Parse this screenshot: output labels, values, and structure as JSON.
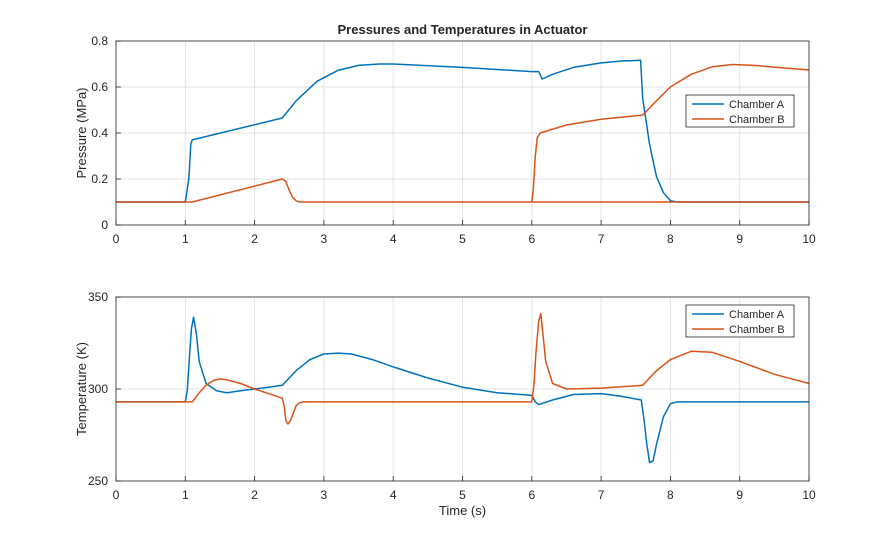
{
  "chart_data": [
    {
      "type": "line",
      "title": "Pressures and Temperatures in Actuator",
      "xlabel": "",
      "ylabel": "Pressure (MPa)",
      "xlim": [
        0,
        10
      ],
      "ylim": [
        0,
        0.8
      ],
      "xticks": [
        0,
        1,
        2,
        3,
        4,
        5,
        6,
        7,
        8,
        9,
        10
      ],
      "xtick_labels": [
        "0",
        "1",
        "2",
        "3",
        "4",
        "5",
        "6",
        "7",
        "8",
        "9",
        "10"
      ],
      "yticks": [
        0,
        0.2,
        0.4,
        0.6,
        0.8
      ],
      "ytick_labels": [
        "0",
        "0.2",
        "0.4",
        "0.6",
        "0.8"
      ],
      "grid": true,
      "legend": "right",
      "series": [
        {
          "name": "Chamber A",
          "color": "#0072BD",
          "x": [
            0,
            1.0,
            1.05,
            1.08,
            1.1,
            2.4,
            2.6,
            2.9,
            3.2,
            3.5,
            3.8,
            4.0,
            5.0,
            6.0,
            6.1,
            6.15,
            6.3,
            6.6,
            7.0,
            7.3,
            7.57,
            7.6,
            7.7,
            7.8,
            7.9,
            8.0,
            8.1,
            10
          ],
          "y": [
            0.1,
            0.1,
            0.2,
            0.35,
            0.37,
            0.465,
            0.54,
            0.625,
            0.672,
            0.694,
            0.7,
            0.7,
            0.685,
            0.667,
            0.667,
            0.635,
            0.655,
            0.685,
            0.705,
            0.713,
            0.716,
            0.55,
            0.35,
            0.21,
            0.14,
            0.105,
            0.1,
            0.1
          ]
        },
        {
          "name": "Chamber B",
          "color": "#D95319",
          "x": [
            0,
            1.1,
            2.4,
            2.45,
            2.5,
            2.55,
            2.6,
            2.65,
            2.7,
            10
          ],
          "y": [
            0.1,
            0.1,
            0.2,
            0.19,
            0.15,
            0.12,
            0.105,
            0.1,
            0.1,
            0.1
          ],
          "x2": [
            6.0,
            6.02,
            6.05,
            6.08,
            6.12,
            6.5,
            7.0,
            7.6,
            7.8,
            8.0,
            8.3,
            8.6,
            8.9,
            9.2,
            9.6,
            10
          ],
          "y2": [
            0.1,
            0.15,
            0.3,
            0.38,
            0.4,
            0.435,
            0.46,
            0.478,
            0.54,
            0.6,
            0.655,
            0.688,
            0.698,
            0.694,
            0.684,
            0.674
          ]
        }
      ]
    },
    {
      "type": "line",
      "title": "",
      "xlabel": "Time (s)",
      "ylabel": "Temperature (K)",
      "xlim": [
        0,
        10
      ],
      "ylim": [
        250,
        350
      ],
      "xticks": [
        0,
        1,
        2,
        3,
        4,
        5,
        6,
        7,
        8,
        9,
        10
      ],
      "xtick_labels": [
        "0",
        "1",
        "2",
        "3",
        "4",
        "5",
        "6",
        "7",
        "8",
        "9",
        "10"
      ],
      "yticks": [
        250,
        300,
        350
      ],
      "ytick_labels": [
        "250",
        "300",
        "350"
      ],
      "grid": true,
      "legend": "top-right",
      "series": [
        {
          "name": "Chamber A",
          "color": "#0072BD",
          "x": [
            0,
            1.0,
            1.03,
            1.06,
            1.09,
            1.12,
            1.16,
            1.2,
            1.3,
            1.45,
            1.6,
            1.8,
            2.0,
            2.2,
            2.4,
            2.6,
            2.8,
            3.0,
            3.2,
            3.4,
            3.7,
            4.0,
            4.5,
            5.0,
            5.5,
            6.0,
            6.05,
            6.1,
            6.3,
            6.6,
            7.0,
            7.3,
            7.58,
            7.62,
            7.66,
            7.7,
            7.75,
            7.8,
            7.9,
            8.0,
            8.1,
            8.2,
            10
          ],
          "y": [
            293,
            293,
            300,
            318,
            333,
            339,
            330,
            315,
            303,
            299,
            298,
            299,
            300,
            301,
            302,
            310,
            316,
            319,
            319.5,
            319,
            316,
            312,
            306,
            301,
            298,
            296.5,
            293,
            291.5,
            294,
            297,
            297.5,
            296,
            294,
            283,
            270,
            260,
            261,
            270,
            285,
            292,
            293,
            293,
            293
          ]
        },
        {
          "name": "Chamber B",
          "color": "#D95319",
          "x": [
            0,
            1.1,
            1.2,
            1.3,
            1.4,
            1.5,
            1.6,
            1.8,
            2.0,
            2.2,
            2.4,
            2.43,
            2.45,
            2.48,
            2.52,
            2.56,
            2.6,
            2.65,
            2.7,
            3.0,
            6.0,
            6.03,
            6.06,
            6.1,
            6.13,
            6.16,
            6.2,
            6.3,
            6.5,
            7.0,
            7.6,
            7.8,
            8.0,
            8.3,
            8.6,
            9.0,
            9.5,
            10
          ],
          "y": [
            293,
            293,
            298,
            302,
            304.5,
            305.5,
            305,
            303,
            300,
            297.5,
            295,
            290,
            283,
            281,
            283,
            287,
            291,
            292.5,
            293,
            293,
            293,
            302,
            320,
            337,
            341,
            330,
            315,
            303,
            300,
            300.5,
            302,
            310,
            316,
            320.5,
            320,
            315,
            308,
            303
          ]
        }
      ]
    }
  ]
}
